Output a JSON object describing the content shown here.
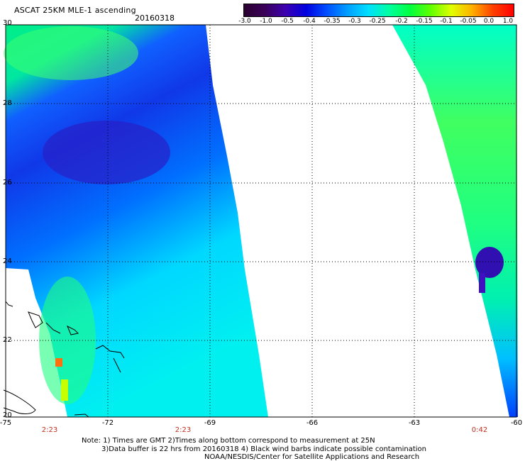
{
  "header": {
    "title": "ASCAT 25KM MLE-1 ascending",
    "date": "20160318"
  },
  "colorbar": {
    "tick_labels": [
      "-3.0",
      "-1.0",
      "-0.5",
      "-0.4",
      "-0.35",
      "-0.3",
      "-0.25",
      "-0.2",
      "-0.15",
      "-0.1",
      "-0.05",
      "0.0",
      "1.0"
    ],
    "colors": [
      "#2a0030",
      "#3a0058",
      "#3d00b0",
      "#0000e0",
      "#0050ff",
      "#00a0ff",
      "#00e0ff",
      "#00ffa0",
      "#00ff40",
      "#60ff00",
      "#e0ff00",
      "#ffb000",
      "#ff4000",
      "#ff0000"
    ]
  },
  "map": {
    "lon_labels": [
      "-75",
      "-72",
      "-69",
      "-66",
      "-63",
      "-60"
    ],
    "lat_labels": [
      "30",
      "28",
      "26",
      "24",
      "22",
      "20"
    ],
    "pass_times": [
      "2:23",
      "2:23",
      "0:42"
    ]
  },
  "notes": {
    "line1": "Note: 1) Times are GMT 2)Times along bottom correspond to measurement at 25N",
    "line2": "3)Data buffer is 22 hrs from 20160318 4) Black wind barbs indicate possible contamination",
    "line3": "NOAA/NESDIS/Center for Satellite Applications and Research"
  }
}
